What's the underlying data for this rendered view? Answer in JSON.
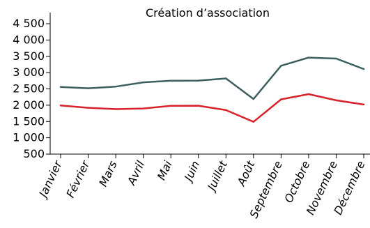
{
  "chart_data": {
    "type": "line",
    "title": "Création d’association",
    "categories": [
      "Janvier",
      "Février",
      "Mars",
      "Avril",
      "Mai",
      "Juin",
      "Juillet",
      "Août",
      "Septembre",
      "Octobre",
      "Novembre",
      "Décembre"
    ],
    "series": [
      {
        "color": "#3d5e5e",
        "values": [
          2560,
          2520,
          2570,
          2700,
          2750,
          2755,
          2820,
          2190,
          3210,
          3460,
          3430,
          3110
        ]
      },
      {
        "color": "#d8222b",
        "values": [
          1990,
          1920,
          1880,
          1900,
          1980,
          1985,
          1850,
          1490,
          2180,
          2340,
          2150,
          2020
        ]
      }
    ],
    "y_ticks": [
      "500",
      "1 000",
      "1 500",
      "2 000",
      "2 500",
      "3 000",
      "3 500",
      "4 000",
      "4 500"
    ],
    "y_tick_values": [
      500,
      1000,
      1500,
      2000,
      2500,
      3000,
      3500,
      4000,
      4500
    ],
    "ylim": [
      500,
      4500
    ],
    "grid": false,
    "legend": "none"
  }
}
